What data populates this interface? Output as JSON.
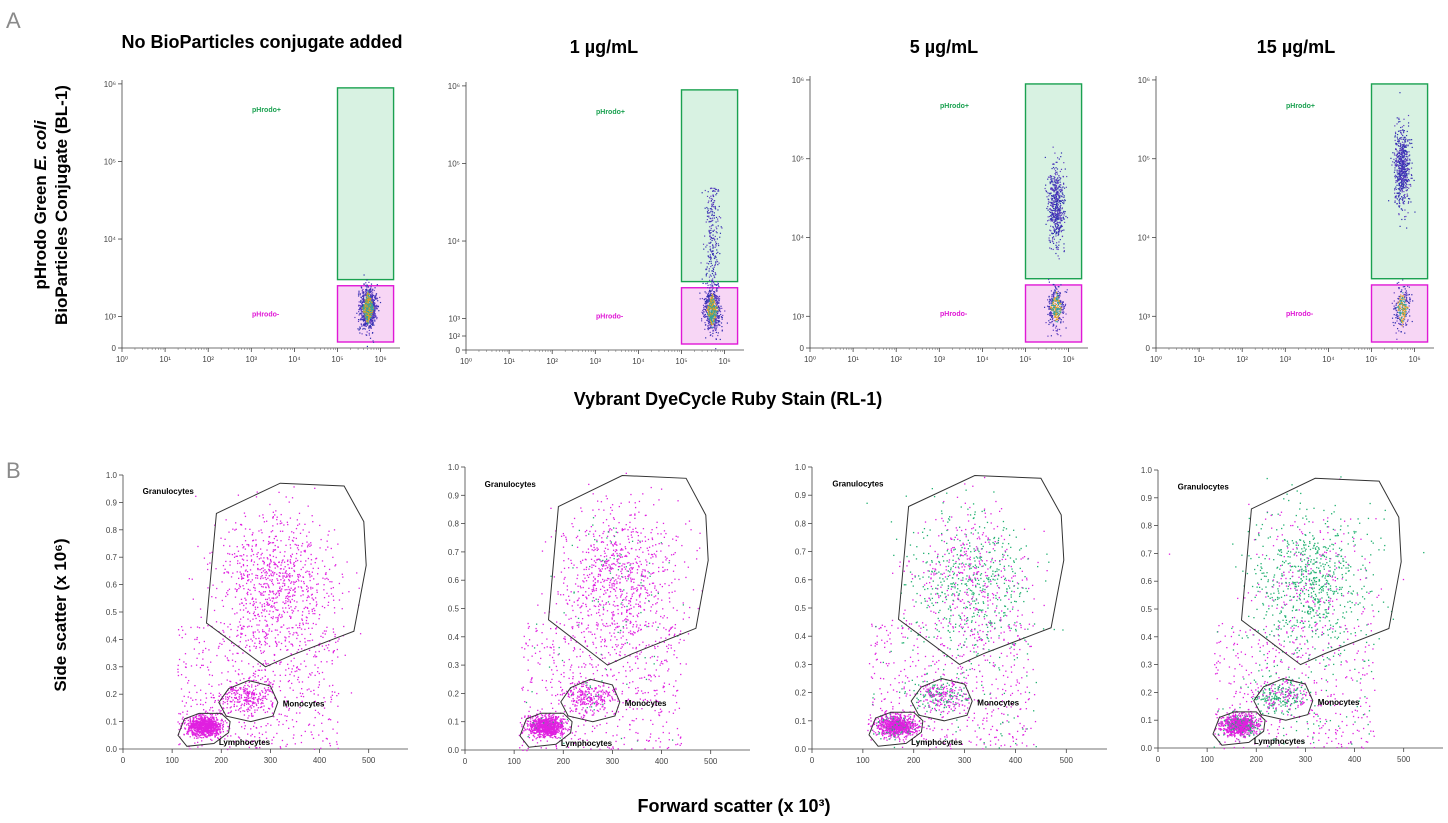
{
  "panel_labels": {
    "a": "A",
    "b": "B"
  },
  "row_a": {
    "ylabel_line1_prefix": "pHrodo Green ",
    "ylabel_line1_italic": "E. coli",
    "ylabel_line1_suffix": "",
    "ylabel_line2": "BioParticles Conjugate (BL-1)",
    "xlabel": "Vybrant DyeCycle Ruby Stain (RL-1)"
  },
  "row_b": {
    "ylabel": "Side scatter (x 10⁶)",
    "xlabel": "Forward scatter (x 10³)"
  },
  "colors": {
    "positive_gate": "#1aa150",
    "negative_gate": "#e018d6",
    "gate_outline": "#333333",
    "event_magenta": "#e020e0",
    "event_green": "#20b070"
  },
  "chart_data": [
    {
      "type": "scatter",
      "title": "No BioParticles conjugate added",
      "xscale": "log",
      "yscale": "log",
      "x_ticks": [
        "10⁰",
        "10¹",
        "10²",
        "10³",
        "10⁴",
        "10⁵",
        "10⁶"
      ],
      "y_ticks": [
        "0",
        "10³",
        "10⁴",
        "10⁵",
        "10⁶"
      ],
      "gates": [
        {
          "name": "pHrodo+",
          "x_range": [
            100000,
            2000000
          ],
          "y_range": [
            3000,
            1000000
          ]
        },
        {
          "name": "pHrodo-",
          "x_range": [
            100000,
            2000000
          ],
          "y_range": [
            700,
            2500
          ]
        }
      ],
      "populations": [
        {
          "x_center": 500000,
          "y_center": 1300,
          "spread": "tight",
          "positive_fraction": 0.0
        }
      ]
    },
    {
      "type": "scatter",
      "title": "1 µg/mL",
      "xscale": "log",
      "yscale": "log",
      "x_ticks": [
        "10⁰",
        "10¹",
        "10²",
        "10³",
        "10⁴",
        "10⁵",
        "10⁶"
      ],
      "y_ticks": [
        "0",
        "10²",
        "10³",
        "10⁴",
        "10⁵",
        "10⁶"
      ],
      "gates": [
        {
          "name": "pHrodo+",
          "x_range": [
            100000,
            2000000
          ],
          "y_range": [
            3000,
            1000000
          ]
        },
        {
          "name": "pHrodo-",
          "x_range": [
            100000,
            2000000
          ],
          "y_range": [
            700,
            2500
          ]
        }
      ],
      "populations": [
        {
          "x_center": 500000,
          "y_center": 1300,
          "spread": "tight",
          "positive_fraction": 0.25
        }
      ]
    },
    {
      "type": "scatter",
      "title": "5 µg/mL",
      "xscale": "log",
      "yscale": "log",
      "x_ticks": [
        "10⁰",
        "10¹",
        "10²",
        "10³",
        "10⁴",
        "10⁵",
        "10⁶"
      ],
      "y_ticks": [
        "0",
        "10³",
        "10⁴",
        "10⁵",
        "10⁶"
      ],
      "gates": [
        {
          "name": "pHrodo+",
          "x_range": [
            100000,
            2000000
          ],
          "y_range": [
            3000,
            1000000
          ]
        },
        {
          "name": "pHrodo-",
          "x_range": [
            100000,
            2000000
          ],
          "y_range": [
            700,
            2500
          ]
        }
      ],
      "populations": [
        {
          "x_center": 500000,
          "y_center": 1300,
          "spread": "tight",
          "positive_fraction": 0.6
        }
      ]
    },
    {
      "type": "scatter",
      "title": "15 µg/mL",
      "xscale": "log",
      "yscale": "log",
      "x_ticks": [
        "10⁰",
        "10¹",
        "10²",
        "10³",
        "10⁴",
        "10⁵",
        "10⁶"
      ],
      "y_ticks": [
        "0",
        "10³",
        "10⁴",
        "10⁵",
        "10⁶"
      ],
      "gates": [
        {
          "name": "pHrodo+",
          "x_range": [
            100000,
            2000000
          ],
          "y_range": [
            3000,
            1000000
          ]
        },
        {
          "name": "pHrodo-",
          "x_range": [
            100000,
            2000000
          ],
          "y_range": [
            700,
            2500
          ]
        }
      ],
      "populations": [
        {
          "x_center": 500000,
          "y_center": 1300,
          "spread": "tight",
          "positive_fraction": 0.7
        }
      ]
    },
    {
      "type": "scatter",
      "xlim": [
        0,
        580
      ],
      "ylim": [
        0,
        1.0
      ],
      "x_ticks": [
        "0",
        "100",
        "200",
        "300",
        "400",
        "500"
      ],
      "y_ticks": [
        "0.0",
        "0.1",
        "0.2",
        "0.3",
        "0.4",
        "0.5",
        "0.6",
        "0.7",
        "0.8",
        "0.9",
        "1.0"
      ],
      "gates": [
        {
          "name": "Granulocytes",
          "polygon": [
            [
              170,
              0.46
            ],
            [
              190,
              0.86
            ],
            [
              320,
              0.97
            ],
            [
              450,
              0.96
            ],
            [
              490,
              0.83
            ],
            [
              495,
              0.67
            ],
            [
              470,
              0.43
            ],
            [
              340,
              0.34
            ],
            [
              290,
              0.3
            ]
          ]
        },
        {
          "name": "Monocytes",
          "polygon": [
            [
              195,
              0.17
            ],
            [
              215,
              0.22
            ],
            [
              255,
              0.25
            ],
            [
              300,
              0.23
            ],
            [
              315,
              0.17
            ],
            [
              305,
              0.12
            ],
            [
              260,
              0.1
            ],
            [
              210,
              0.12
            ]
          ]
        },
        {
          "name": "Lymphocytes",
          "polygon": [
            [
              112,
              0.05
            ],
            [
              125,
              0.11
            ],
            [
              155,
              0.13
            ],
            [
              200,
              0.13
            ],
            [
              218,
              0.1
            ],
            [
              215,
              0.06
            ],
            [
              185,
              0.02
            ],
            [
              130,
              0.01
            ]
          ]
        }
      ],
      "green_fraction": 0.0
    },
    {
      "type": "scatter",
      "xlim": [
        0,
        580
      ],
      "ylim": [
        0,
        1.0
      ],
      "x_ticks": [
        "0",
        "100",
        "200",
        "300",
        "400",
        "500"
      ],
      "y_ticks": [
        "0.0",
        "0.1",
        "0.2",
        "0.3",
        "0.4",
        "0.5",
        "0.6",
        "0.7",
        "0.8",
        "0.9",
        "1.0"
      ],
      "gates": [
        {
          "name": "Granulocytes",
          "polygon": [
            [
              170,
              0.46
            ],
            [
              190,
              0.86
            ],
            [
              320,
              0.97
            ],
            [
              450,
              0.96
            ],
            [
              490,
              0.83
            ],
            [
              495,
              0.67
            ],
            [
              470,
              0.43
            ],
            [
              340,
              0.34
            ],
            [
              290,
              0.3
            ]
          ]
        },
        {
          "name": "Monocytes",
          "polygon": [
            [
              195,
              0.17
            ],
            [
              215,
              0.22
            ],
            [
              255,
              0.25
            ],
            [
              300,
              0.23
            ],
            [
              315,
              0.17
            ],
            [
              305,
              0.12
            ],
            [
              260,
              0.1
            ],
            [
              210,
              0.12
            ]
          ]
        },
        {
          "name": "Lymphocytes",
          "polygon": [
            [
              112,
              0.05
            ],
            [
              125,
              0.11
            ],
            [
              155,
              0.13
            ],
            [
              200,
              0.13
            ],
            [
              218,
              0.1
            ],
            [
              215,
              0.06
            ],
            [
              185,
              0.02
            ],
            [
              130,
              0.01
            ]
          ]
        }
      ],
      "green_fraction": 0.08
    },
    {
      "type": "scatter",
      "xlim": [
        0,
        580
      ],
      "ylim": [
        0,
        1.0
      ],
      "x_ticks": [
        "0",
        "100",
        "200",
        "300",
        "400",
        "500"
      ],
      "y_ticks": [
        "0.0",
        "0.1",
        "0.2",
        "0.3",
        "0.4",
        "0.5",
        "0.6",
        "0.7",
        "0.8",
        "0.9",
        "1.0"
      ],
      "gates": [
        {
          "name": "Granulocytes",
          "polygon": [
            [
              170,
              0.46
            ],
            [
              190,
              0.86
            ],
            [
              320,
              0.97
            ],
            [
              450,
              0.96
            ],
            [
              490,
              0.83
            ],
            [
              495,
              0.67
            ],
            [
              470,
              0.43
            ],
            [
              340,
              0.34
            ],
            [
              290,
              0.3
            ]
          ]
        },
        {
          "name": "Monocytes",
          "polygon": [
            [
              195,
              0.17
            ],
            [
              215,
              0.22
            ],
            [
              255,
              0.25
            ],
            [
              300,
              0.23
            ],
            [
              315,
              0.17
            ],
            [
              305,
              0.12
            ],
            [
              260,
              0.1
            ],
            [
              210,
              0.12
            ]
          ]
        },
        {
          "name": "Lymphocytes",
          "polygon": [
            [
              112,
              0.05
            ],
            [
              125,
              0.11
            ],
            [
              155,
              0.13
            ],
            [
              200,
              0.13
            ],
            [
              218,
              0.1
            ],
            [
              215,
              0.06
            ],
            [
              185,
              0.02
            ],
            [
              130,
              0.01
            ]
          ]
        }
      ],
      "green_fraction": 0.55
    },
    {
      "type": "scatter",
      "xlim": [
        0,
        580
      ],
      "ylim": [
        0,
        1.0
      ],
      "x_ticks": [
        "0",
        "100",
        "200",
        "300",
        "400",
        "500"
      ],
      "y_ticks": [
        "0.0",
        "0.1",
        "0.2",
        "0.3",
        "0.4",
        "0.5",
        "0.6",
        "0.7",
        "0.8",
        "0.9",
        "1.0"
      ],
      "gates": [
        {
          "name": "Granulocytes",
          "polygon": [
            [
              170,
              0.46
            ],
            [
              190,
              0.86
            ],
            [
              320,
              0.97
            ],
            [
              450,
              0.96
            ],
            [
              490,
              0.83
            ],
            [
              495,
              0.67
            ],
            [
              470,
              0.43
            ],
            [
              340,
              0.34
            ],
            [
              290,
              0.3
            ]
          ]
        },
        {
          "name": "Monocytes",
          "polygon": [
            [
              195,
              0.17
            ],
            [
              215,
              0.22
            ],
            [
              255,
              0.25
            ],
            [
              300,
              0.23
            ],
            [
              315,
              0.17
            ],
            [
              305,
              0.12
            ],
            [
              260,
              0.1
            ],
            [
              210,
              0.12
            ]
          ]
        },
        {
          "name": "Lymphocytes",
          "polygon": [
            [
              112,
              0.05
            ],
            [
              125,
              0.11
            ],
            [
              155,
              0.13
            ],
            [
              200,
              0.13
            ],
            [
              218,
              0.1
            ],
            [
              215,
              0.06
            ],
            [
              185,
              0.02
            ],
            [
              130,
              0.01
            ]
          ]
        }
      ],
      "green_fraction": 0.75
    }
  ]
}
